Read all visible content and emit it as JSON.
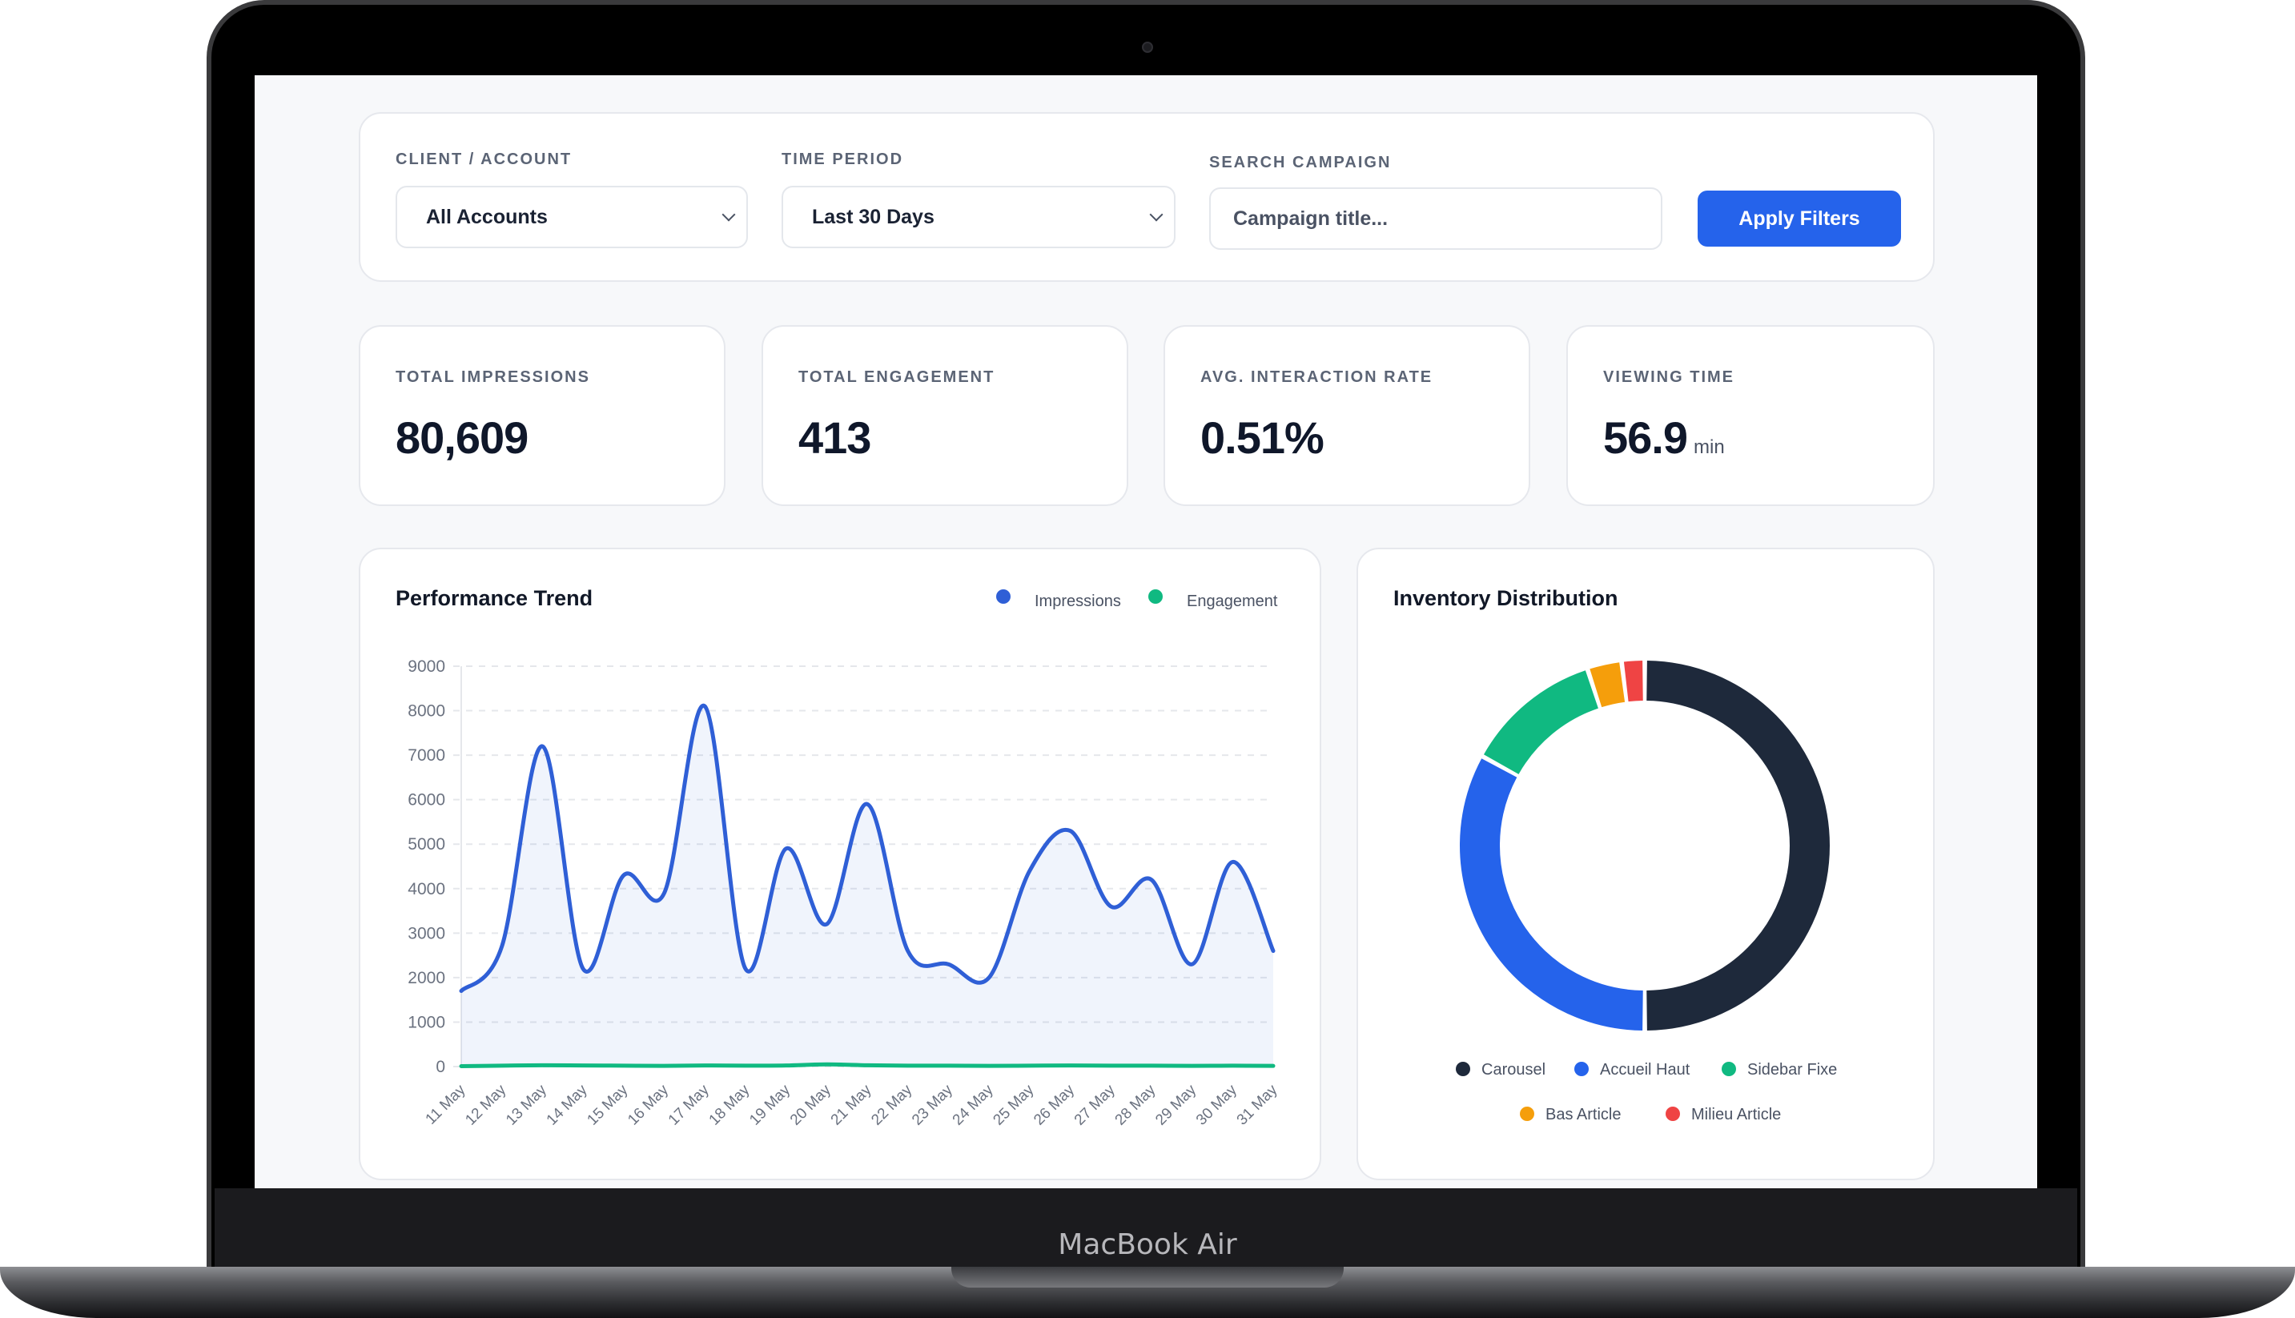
{
  "device": {
    "brand": "MacBook Air"
  },
  "filters": {
    "client_label": "CLIENT / ACCOUNT",
    "client_value": "All Accounts",
    "period_label": "TIME PERIOD",
    "period_value": "Last 30 Days",
    "search_label": "SEARCH CAMPAIGN",
    "search_placeholder": "Campaign title...",
    "apply_label": "Apply Filters"
  },
  "kpis": [
    {
      "label": "TOTAL IMPRESSIONS",
      "value": "80,609",
      "unit": ""
    },
    {
      "label": "TOTAL ENGAGEMENT",
      "value": "413",
      "unit": ""
    },
    {
      "label": "AVG. INTERACTION RATE",
      "value": "0.51%",
      "unit": ""
    },
    {
      "label": "VIEWING TIME",
      "value": "56.9",
      "unit": "min"
    }
  ],
  "colors": {
    "impressions": "#2f5fd6",
    "engagement": "#10b981",
    "carousel": "#1e293b",
    "accueil_haut": "#2563eb",
    "sidebar_fixe": "#10b981",
    "bas_article": "#f59e0b",
    "milieu_article": "#ef4444",
    "accent": "#2563eb"
  },
  "trend": {
    "title": "Performance Trend",
    "legend": [
      "Impressions",
      "Engagement"
    ]
  },
  "donut": {
    "title": "Inventory Distribution",
    "legend": [
      "Carousel",
      "Accueil Haut",
      "Sidebar Fixe",
      "Bas Article",
      "Milieu Article"
    ]
  },
  "chart_data": [
    {
      "type": "line",
      "title": "Performance Trend",
      "x": [
        "11 May",
        "12 May",
        "13 May",
        "14 May",
        "15 May",
        "16 May",
        "17 May",
        "18 May",
        "19 May",
        "20 May",
        "21 May",
        "22 May",
        "23 May",
        "24 May",
        "25 May",
        "26 May",
        "27 May",
        "28 May",
        "29 May",
        "30 May",
        "31 May"
      ],
      "ylim": [
        0,
        9000
      ],
      "yticks": [
        0,
        1000,
        2000,
        3000,
        4000,
        5000,
        6000,
        7000,
        8000,
        9000
      ],
      "grid": true,
      "legend_position": "top-right",
      "series": [
        {
          "name": "Impressions",
          "values": [
            1700,
            2700,
            7200,
            2200,
            4300,
            3900,
            8100,
            2200,
            4900,
            3200,
            5900,
            2600,
            2300,
            2000,
            4400,
            5300,
            3600,
            4200,
            2300,
            4600,
            2600
          ]
        },
        {
          "name": "Engagement",
          "values": [
            10,
            20,
            30,
            25,
            20,
            15,
            25,
            20,
            25,
            50,
            30,
            20,
            20,
            15,
            20,
            25,
            20,
            20,
            15,
            20,
            15
          ]
        }
      ]
    },
    {
      "type": "pie",
      "title": "Inventory Distribution",
      "categories": [
        "Carousel",
        "Accueil Haut",
        "Sidebar Fixe",
        "Bas Article",
        "Milieu Article"
      ],
      "values": [
        50,
        33,
        12,
        3,
        2
      ],
      "legend_position": "bottom"
    }
  ]
}
